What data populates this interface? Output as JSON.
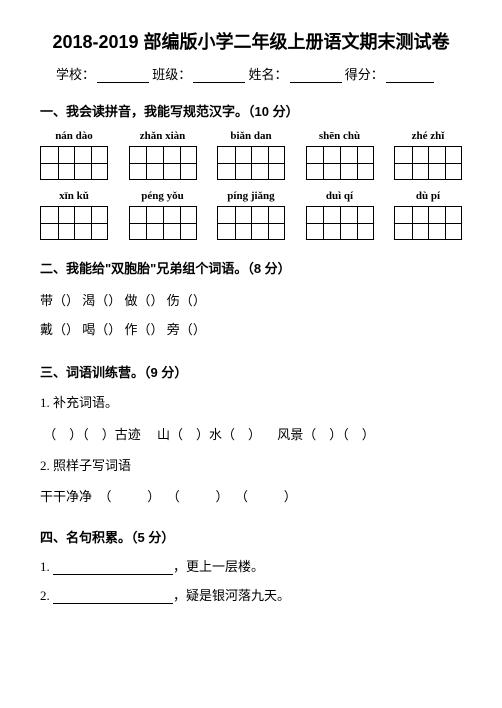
{
  "title": "2018-2019 部编版小学二年级上册语文期末测试卷",
  "info": {
    "school_label": "学校：",
    "class_label": "班级：",
    "name_label": "姓名：",
    "score_label": "得分："
  },
  "section1": {
    "heading": "一、我会读拼音，我能写规范汉字。（10 分）",
    "row1_pinyin": [
      "nán  dào",
      "zhǎn xiàn",
      "biǎn  dan",
      "shēn  chù",
      "zhé  zhǐ"
    ],
    "row2_pinyin": [
      "xīn  kǔ",
      "péng  yǒu",
      "píng  jiǎng",
      "duì  qí",
      "dù  pí"
    ]
  },
  "section2": {
    "heading": "二、我能给\"双胞胎\"兄弟组个词语。（8 分）",
    "row1": [
      "带（",
      "）  渴（",
      "）  做（",
      "）  伤（",
      "）"
    ],
    "row2": [
      "戴（",
      "）  喝（",
      "）  作（",
      "）  旁（",
      "）"
    ]
  },
  "section3": {
    "heading": "三、词语训练营。（9 分）",
    "item1_label": "1. 补充词语。",
    "item1_content": " （    ）（    ）古迹     山（    ）水（    ）     风景（    ）（    ）",
    "item2_label": "2. 照样子写词语",
    "item2_content": "干干净净  （           ）  （           ）  （           ）"
  },
  "section4": {
    "heading": "四、名句积累。（5 分）",
    "item1_prefix": "1. ",
    "item1_suffix": "，更上一层楼。",
    "item2_prefix": "2. ",
    "item2_suffix": "，疑是银河落九天。"
  }
}
